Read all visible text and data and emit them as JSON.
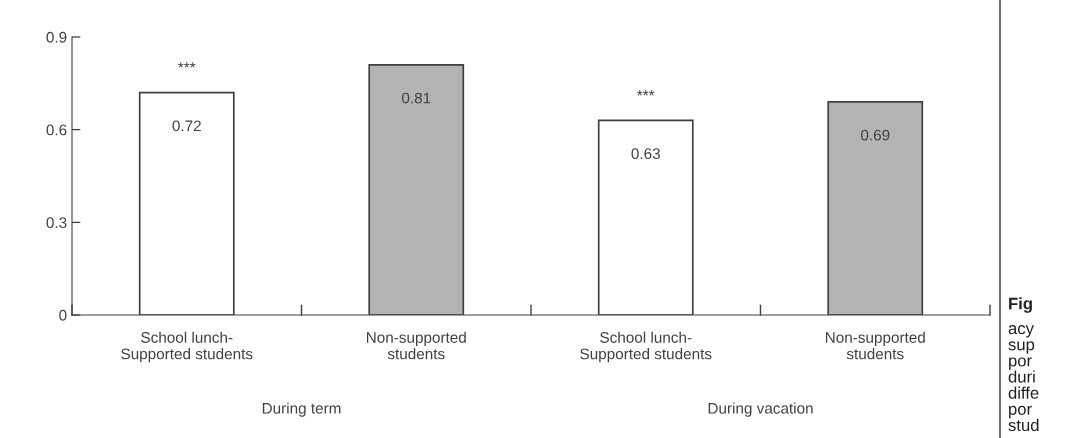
{
  "chart_data": {
    "type": "bar",
    "categories": [
      "School lunch-\nSupported students",
      "Non-supported\nstudents",
      "School lunch-\nSupported students",
      "Non-supported\nstudents"
    ],
    "values": [
      0.72,
      0.81,
      0.63,
      0.69
    ],
    "colors": [
      "#ffffff",
      "#b3b3b3",
      "#ffffff",
      "#b3b3b3"
    ],
    "ylim": [
      0,
      0.9
    ],
    "yticks": [
      0,
      0.3,
      0.6,
      0.9
    ],
    "data_labels": true,
    "grid": false,
    "legend": false,
    "annotations": [
      "***",
      "***",
      "During term",
      "During vacation",
      "Fig\nacy\nsup\npor\nduri\ndiffe\npor\nstud"
    ]
  }
}
